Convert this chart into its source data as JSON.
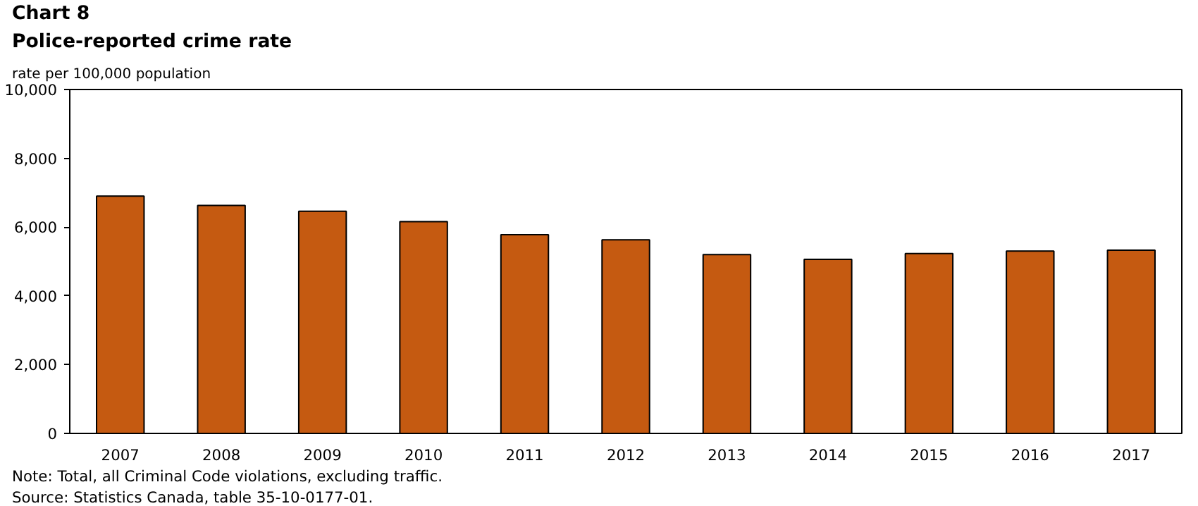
{
  "chart_data": {
    "type": "bar",
    "title": "Chart 8",
    "subtitle": "Police-reported  crime rate",
    "ylabel": "rate per 100,000 population",
    "categories": [
      "2007",
      "2008",
      "2009",
      "2010",
      "2011",
      "2012",
      "2013",
      "2014",
      "2015",
      "2016",
      "2017"
    ],
    "values": [
      6900,
      6630,
      6460,
      6160,
      5780,
      5630,
      5200,
      5060,
      5230,
      5300,
      5330
    ],
    "color": "#c55a11",
    "ylim": [
      0,
      10000
    ],
    "yticks": [
      {
        "value": 0,
        "label": "0"
      },
      {
        "value": 2000,
        "label": "2,000"
      },
      {
        "value": 4000,
        "label": "4,000"
      },
      {
        "value": 6000,
        "label": "6,000"
      },
      {
        "value": 8000,
        "label": "8,000"
      },
      {
        "value": 10000,
        "label": "10,000"
      }
    ],
    "grid": false,
    "annotations": [
      "Note: Total, all Criminal Code violations, excluding traffic.",
      "Source: Statistics Canada, table 35-10-0177-01."
    ]
  }
}
